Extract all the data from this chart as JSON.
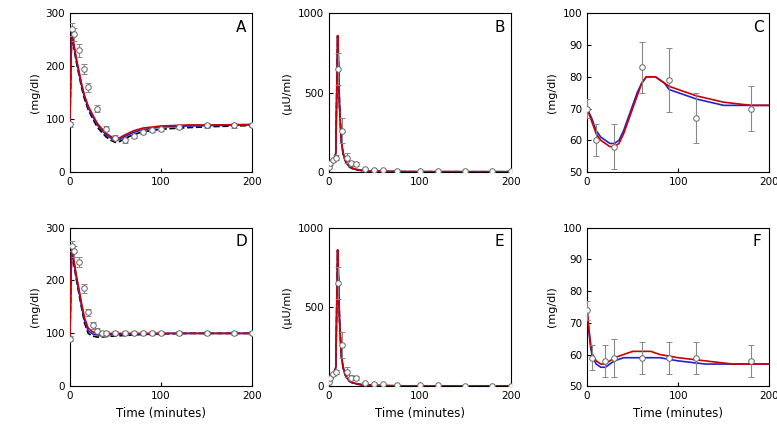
{
  "xlabel": "Time (minutes)",
  "panel_A": {
    "ylim": [
      0,
      300
    ],
    "yticks": [
      0,
      100,
      200,
      300
    ],
    "xlim": [
      0,
      200
    ],
    "xticks": [
      0,
      100,
      200
    ],
    "data_x": [
      0,
      2,
      5,
      10,
      15,
      20,
      30,
      40,
      50,
      60,
      70,
      80,
      90,
      100,
      120,
      150,
      180,
      200
    ],
    "data_y": [
      90,
      270,
      260,
      230,
      195,
      160,
      120,
      82,
      65,
      60,
      68,
      75,
      80,
      82,
      85,
      88,
      88,
      89
    ],
    "data_err": [
      5,
      12,
      12,
      12,
      10,
      8,
      7,
      5,
      5,
      5,
      4,
      4,
      4,
      4,
      4,
      4,
      4,
      4
    ],
    "line_red_x": [
      0,
      1,
      2,
      3,
      5,
      7,
      10,
      13,
      16,
      20,
      25,
      30,
      35,
      40,
      45,
      50,
      55,
      60,
      70,
      80,
      100,
      130,
      160,
      200
    ],
    "line_red_y": [
      90,
      200,
      265,
      255,
      235,
      215,
      190,
      165,
      145,
      125,
      108,
      92,
      82,
      73,
      67,
      63,
      65,
      70,
      78,
      83,
      87,
      89,
      89,
      90
    ],
    "line_blue_x": [
      0,
      1,
      2,
      3,
      5,
      7,
      10,
      13,
      16,
      20,
      25,
      30,
      35,
      40,
      45,
      50,
      55,
      60,
      70,
      80,
      100,
      130,
      160,
      200
    ],
    "line_blue_y": [
      90,
      198,
      262,
      252,
      232,
      212,
      187,
      162,
      142,
      122,
      105,
      89,
      79,
      70,
      64,
      60,
      62,
      67,
      75,
      80,
      85,
      87,
      88,
      89
    ],
    "line_black_x": [
      0,
      1,
      2,
      3,
      5,
      7,
      10,
      13,
      16,
      20,
      25,
      30,
      35,
      40,
      45,
      50,
      55,
      60,
      70,
      80,
      100,
      130,
      160,
      200
    ],
    "line_black_y": [
      90,
      195,
      258,
      248,
      228,
      208,
      183,
      158,
      138,
      118,
      101,
      85,
      75,
      66,
      60,
      56,
      58,
      63,
      71,
      76,
      81,
      84,
      86,
      88
    ]
  },
  "panel_B": {
    "ylim": [
      0,
      1000
    ],
    "yticks": [
      0,
      500,
      1000
    ],
    "xlim": [
      0,
      200
    ],
    "xticks": [
      0,
      100,
      200
    ],
    "data_x": [
      0,
      2,
      5,
      8,
      10,
      15,
      20,
      25,
      30,
      40,
      50,
      60,
      75,
      100,
      120,
      150,
      180,
      200
    ],
    "data_y": [
      30,
      55,
      75,
      90,
      650,
      260,
      90,
      55,
      50,
      22,
      15,
      12,
      8,
      5,
      5,
      4,
      4,
      4
    ],
    "data_err": [
      5,
      8,
      10,
      15,
      100,
      80,
      30,
      15,
      12,
      6,
      4,
      4,
      3,
      2,
      2,
      2,
      2,
      2
    ],
    "line_red_x": [
      0,
      2,
      4,
      6,
      8,
      9,
      10,
      11,
      12,
      14,
      16,
      18,
      20,
      23,
      26,
      30,
      35,
      40,
      50,
      60,
      80,
      100,
      150,
      200
    ],
    "line_red_y": [
      25,
      35,
      50,
      75,
      120,
      500,
      860,
      680,
      430,
      200,
      120,
      80,
      55,
      35,
      25,
      18,
      12,
      9,
      6,
      5,
      3,
      3,
      2,
      2
    ],
    "line_blue_x": [
      0,
      2,
      4,
      6,
      8,
      9,
      10,
      11,
      12,
      14,
      16,
      18,
      20,
      23,
      26,
      30,
      35,
      40,
      50,
      60,
      80,
      100,
      150,
      200
    ],
    "line_blue_y": [
      25,
      35,
      50,
      75,
      120,
      500,
      858,
      678,
      428,
      198,
      118,
      78,
      53,
      33,
      23,
      16,
      11,
      8,
      5,
      4,
      3,
      2,
      2,
      2
    ],
    "line_black_x": [
      0,
      2,
      4,
      6,
      8,
      9,
      10,
      11,
      12,
      14,
      16,
      18,
      20,
      23,
      26,
      30,
      35,
      40,
      50,
      60,
      80,
      100,
      150,
      200
    ],
    "line_black_y": [
      25,
      35,
      50,
      75,
      120,
      500,
      856,
      676,
      426,
      196,
      116,
      76,
      51,
      31,
      22,
      15,
      10,
      7,
      5,
      4,
      2,
      2,
      2,
      2
    ]
  },
  "panel_C": {
    "ylim": [
      50,
      100
    ],
    "yticks": [
      50,
      60,
      70,
      80,
      90,
      100
    ],
    "xlim": [
      0,
      200
    ],
    "xticks": [
      0,
      100,
      200
    ],
    "data_x": [
      0,
      10,
      30,
      60,
      90,
      120,
      180
    ],
    "data_y": [
      70,
      60,
      58,
      83,
      79,
      67,
      70
    ],
    "data_err": [
      3,
      5,
      7,
      8,
      10,
      8,
      7
    ],
    "line_red_x": [
      0,
      5,
      10,
      15,
      20,
      25,
      30,
      35,
      40,
      45,
      50,
      55,
      60,
      65,
      70,
      75,
      80,
      85,
      90,
      100,
      120,
      150,
      180,
      200
    ],
    "line_red_y": [
      70,
      66,
      62,
      60,
      59,
      58,
      58,
      59,
      62,
      66,
      70,
      74,
      78,
      80,
      80,
      80,
      79,
      78,
      77,
      76,
      74,
      72,
      71,
      71
    ],
    "line_blue_x": [
      0,
      5,
      10,
      15,
      20,
      25,
      30,
      35,
      40,
      45,
      50,
      55,
      60,
      65,
      70,
      75,
      80,
      85,
      90,
      100,
      120,
      150,
      180,
      200
    ],
    "line_blue_y": [
      70,
      67,
      63,
      61,
      60,
      59,
      59,
      60,
      63,
      67,
      71,
      75,
      78,
      80,
      80,
      80,
      79,
      78,
      76,
      75,
      73,
      71,
      71,
      71
    ]
  },
  "panel_D": {
    "ylim": [
      0,
      300
    ],
    "yticks": [
      0,
      100,
      200,
      300
    ],
    "xlim": [
      0,
      200
    ],
    "xticks": [
      0,
      100,
      200
    ],
    "data_x": [
      0,
      2,
      5,
      10,
      15,
      20,
      25,
      30,
      35,
      40,
      50,
      60,
      70,
      80,
      90,
      100,
      120,
      150,
      180,
      200
    ],
    "data_y": [
      90,
      265,
      255,
      235,
      185,
      140,
      115,
      105,
      100,
      100,
      100,
      100,
      100,
      100,
      100,
      100,
      100,
      100,
      100,
      100
    ],
    "data_err": [
      5,
      10,
      10,
      10,
      8,
      7,
      6,
      5,
      5,
      5,
      4,
      4,
      4,
      4,
      4,
      4,
      4,
      4,
      4,
      4
    ],
    "line_red_x": [
      0,
      1,
      2,
      3,
      5,
      7,
      10,
      13,
      16,
      20,
      25,
      30,
      35,
      40,
      50,
      60,
      80,
      100,
      130,
      160,
      200
    ],
    "line_red_y": [
      90,
      195,
      262,
      252,
      232,
      210,
      183,
      155,
      130,
      110,
      103,
      100,
      100,
      100,
      100,
      100,
      100,
      100,
      100,
      100,
      100
    ],
    "line_blue_x": [
      0,
      1,
      2,
      3,
      5,
      7,
      10,
      13,
      16,
      20,
      25,
      30,
      35,
      40,
      50,
      60,
      80,
      100,
      130,
      160,
      200
    ],
    "line_blue_y": [
      90,
      193,
      258,
      248,
      228,
      206,
      178,
      150,
      125,
      105,
      99,
      97,
      97,
      97,
      98,
      99,
      99,
      100,
      100,
      100,
      100
    ],
    "line_black_x": [
      0,
      1,
      2,
      3,
      5,
      7,
      10,
      13,
      16,
      20,
      25,
      30,
      35,
      40,
      50,
      60,
      80,
      100,
      130,
      160,
      200
    ],
    "line_black_y": [
      90,
      190,
      255,
      244,
      224,
      202,
      174,
      146,
      120,
      100,
      95,
      93,
      93,
      94,
      95,
      96,
      98,
      99,
      100,
      100,
      100
    ]
  },
  "panel_E": {
    "ylim": [
      0,
      1000
    ],
    "yticks": [
      0,
      500,
      1000
    ],
    "xlim": [
      0,
      200
    ],
    "xticks": [
      0,
      100,
      200
    ],
    "data_x": [
      0,
      2,
      5,
      8,
      10,
      15,
      20,
      25,
      30,
      40,
      50,
      60,
      75,
      100,
      120,
      150,
      180,
      200
    ],
    "data_y": [
      30,
      55,
      75,
      90,
      650,
      260,
      90,
      55,
      50,
      22,
      15,
      12,
      8,
      5,
      5,
      4,
      4,
      4
    ],
    "data_err": [
      5,
      8,
      10,
      15,
      100,
      80,
      30,
      15,
      12,
      6,
      4,
      4,
      3,
      2,
      2,
      2,
      2,
      2
    ],
    "line_red_x": [
      0,
      2,
      4,
      6,
      8,
      9,
      10,
      11,
      12,
      14,
      16,
      18,
      20,
      23,
      26,
      30,
      35,
      40,
      50,
      60,
      80,
      100,
      150,
      200
    ],
    "line_red_y": [
      25,
      35,
      50,
      75,
      120,
      500,
      860,
      680,
      430,
      200,
      120,
      80,
      55,
      35,
      25,
      18,
      12,
      9,
      6,
      5,
      3,
      3,
      2,
      2
    ],
    "line_blue_x": [
      0,
      2,
      4,
      6,
      8,
      9,
      10,
      11,
      12,
      14,
      16,
      18,
      20,
      23,
      26,
      30,
      35,
      40,
      50,
      60,
      80,
      100,
      150,
      200
    ],
    "line_blue_y": [
      25,
      35,
      50,
      75,
      120,
      500,
      858,
      678,
      428,
      198,
      118,
      78,
      53,
      33,
      23,
      16,
      11,
      8,
      5,
      4,
      3,
      2,
      2,
      2
    ],
    "line_black_x": [
      0,
      2,
      4,
      6,
      8,
      9,
      10,
      11,
      12,
      14,
      16,
      18,
      20,
      23,
      26,
      30,
      35,
      40,
      50,
      60,
      80,
      100,
      150,
      200
    ],
    "line_black_y": [
      25,
      35,
      50,
      75,
      120,
      500,
      856,
      676,
      426,
      196,
      116,
      76,
      51,
      31,
      22,
      15,
      10,
      7,
      5,
      4,
      2,
      2,
      2,
      2
    ]
  },
  "panel_F": {
    "ylim": [
      50,
      100
    ],
    "yticks": [
      50,
      60,
      70,
      80,
      90,
      100
    ],
    "xlim": [
      0,
      200
    ],
    "xticks": [
      0,
      100,
      200
    ],
    "data_x": [
      0,
      5,
      20,
      30,
      60,
      90,
      120,
      180
    ],
    "data_y": [
      74,
      59,
      58,
      59,
      59,
      59,
      59,
      58
    ],
    "data_err": [
      3,
      4,
      5,
      6,
      5,
      5,
      5,
      5
    ],
    "line_red_x": [
      0,
      2,
      4,
      6,
      8,
      10,
      15,
      20,
      25,
      30,
      40,
      50,
      60,
      70,
      80,
      100,
      130,
      160,
      200
    ],
    "line_red_y": [
      74,
      68,
      63,
      60,
      59,
      58,
      57,
      57,
      58,
      59,
      60,
      61,
      61,
      61,
      60,
      59,
      58,
      57,
      57
    ],
    "line_blue_x": [
      0,
      2,
      4,
      6,
      8,
      10,
      15,
      20,
      25,
      30,
      40,
      50,
      60,
      70,
      80,
      100,
      130,
      160,
      200
    ],
    "line_blue_y": [
      74,
      67,
      62,
      59,
      58,
      57,
      56,
      56,
      57,
      58,
      59,
      59,
      59,
      59,
      59,
      58,
      57,
      57,
      57
    ]
  },
  "color_red": "#cc0000",
  "color_blue": "#2222cc",
  "color_black_dashed": "#000000",
  "marker_size": 4,
  "marker_facecolor": "white",
  "marker_edgecolor": "#666666",
  "line_width": 1.2,
  "errorbar_capsize": 2,
  "errorbar_color": "#888888"
}
